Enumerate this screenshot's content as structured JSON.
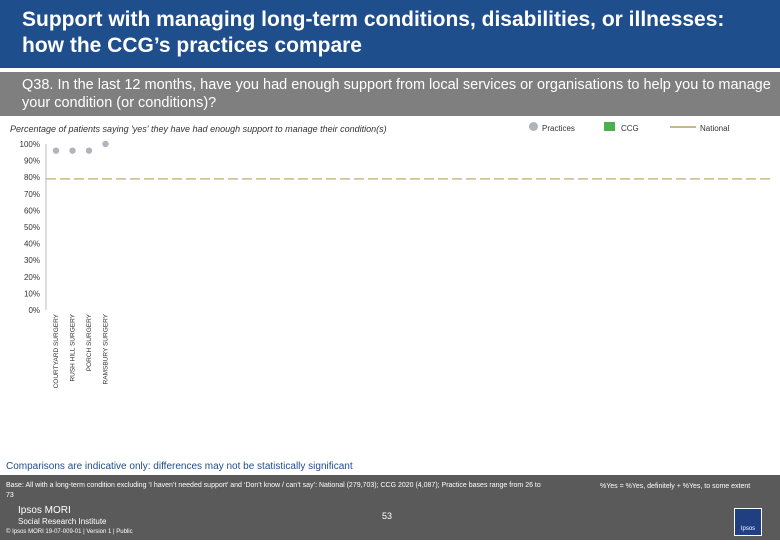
{
  "header": {
    "title": "Support with managing long-term conditions, disabilities, or illnesses: how the CCG’s practices compare"
  },
  "question": {
    "text": "Q38. In the last 12 months, have you had enough support from local services or organisations to help you to manage your condition (or conditions)?"
  },
  "legend": {
    "practices": "Practices",
    "ccg": "CCG",
    "national": "National"
  },
  "colors": {
    "title_bg": "#1f4e8c",
    "question_bg": "#7f7f7f",
    "practice_marker": "#aeb5bd",
    "ccg_marker": "#4caf50",
    "national_line": "#c7b98a"
  },
  "chart_data": {
    "type": "scatter",
    "title": "Percentage of patients saying 'yes' they have had enough support to manage their condition(s)",
    "ylabel": "",
    "ylim": [
      0,
      100
    ],
    "yticks": [
      "0%",
      "10%",
      "20%",
      "30%",
      "40%",
      "50%",
      "60%",
      "70%",
      "80%",
      "90%",
      "100%"
    ],
    "categories": [
      "COURTYARD SURGERY",
      "RUSH HILL SURGERY",
      "PORCH SURGERY",
      "RAMSBURY SURGERY"
    ],
    "values": [
      96,
      96,
      96,
      100
    ],
    "national_value": 79,
    "grid": false
  },
  "notes": {
    "comparisons": "Comparisons are indicative only: differences may not be statistically significant",
    "base": "Base: All with a long-term condition excluding ‘I haven’t needed support’ and ‘Don’t know / can’t say’: National (279,703); CCG 2020 (4,087); Practice bases range from 26 to 73",
    "formula": "%Yes = %Yes, definitely + %Yes, to some extent"
  },
  "footer": {
    "logo_line1": "Ipsos MORI",
    "logo_line2": "Social Research Institute",
    "page_number": "53",
    "copyright": "© Ipsos MORI      19-07-009-01 | Version 1 | Public",
    "badge": "Ipsos"
  }
}
